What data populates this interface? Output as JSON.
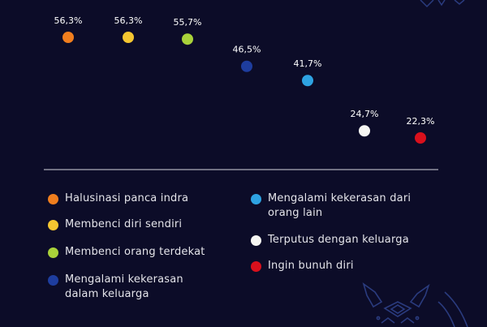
{
  "chart_data": {
    "type": "scatter",
    "categories": [
      "Halusinasi panca indra",
      "Membenci diri sendiri",
      "Membenci orang terdekat",
      "Mengalami kekerasan\ndalam keluarga",
      "Mengalami kekerasan dari\norang lain",
      "Terputus dengan keluarga",
      "Ingin bunuh diri"
    ],
    "values": [
      56.3,
      56.3,
      55.7,
      46.5,
      41.7,
      24.7,
      22.3
    ],
    "value_labels": [
      "56,3%",
      "56,3%",
      "55,7%",
      "46,5%",
      "41,7%",
      "24,7%",
      "22,3%"
    ],
    "colors": [
      "#f07e1e",
      "#f5c631",
      "#a9d23a",
      "#1e3d9e",
      "#2ea3e2",
      "#f6f6f2",
      "#d9101c"
    ],
    "title": "",
    "xlabel": "",
    "ylabel": "",
    "grid": false,
    "legend": "bottom"
  },
  "theme": {
    "background": "#0c0c28",
    "axis_color": "#d5d5dc",
    "text_color": "#e4e4ea",
    "ornament_color": "#2a3b7e"
  },
  "decorations": [
    "ornament-top-right-icon",
    "ornament-bottom-right-icon"
  ]
}
